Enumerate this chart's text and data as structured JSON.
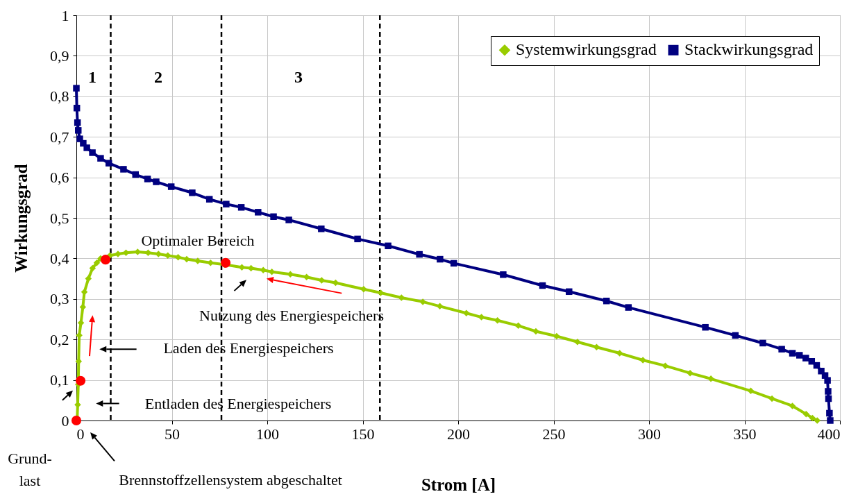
{
  "chart_data": {
    "type": "line",
    "xlabel": "Strom [A]",
    "ylabel": "Wirkungsgrad",
    "xlim": [
      0,
      400
    ],
    "xticks": [
      0,
      50,
      100,
      150,
      200,
      250,
      300,
      350,
      400
    ],
    "ylim": [
      0,
      1
    ],
    "yticks": [
      0,
      {
        "value": 0.1,
        "label": "0,1"
      },
      {
        "value": 0.2,
        "label": "0,2"
      },
      {
        "value": 0.3,
        "label": "0,3"
      },
      {
        "value": 0.4,
        "label": "0,4"
      },
      {
        "value": 0.5,
        "label": "0,5"
      },
      {
        "value": 0.6,
        "label": "0,6"
      },
      {
        "value": 0.7,
        "label": "0,7"
      },
      {
        "value": 0.8,
        "label": "0,8"
      },
      {
        "value": 0.9,
        "label": "0,9"
      },
      1
    ],
    "grid": true,
    "legend": "top right",
    "series": [
      {
        "name": "Systemwirkungsgrad",
        "color": "#99cc00",
        "marker": "diamond",
        "x": [
          0.4,
          0.7,
          1,
          1.2,
          1.5,
          2.4,
          3.4,
          4.2,
          6.3,
          8.5,
          10.7,
          12.7,
          17.6,
          21.8,
          26,
          32.1,
          37.6,
          43,
          47.9,
          53.3,
          57.8,
          63.6,
          70.3,
          77.6,
          86.7,
          91.5,
          97.9,
          102.4,
          112.1,
          120.6,
          128.5,
          135.8,
          150.5,
          159.4,
          170.3,
          181.5,
          190.4,
          204.3,
          212.2,
          220.6,
          231.5,
          240.7,
          251.6,
          262.5,
          272.5,
          284.6,
          296.8,
          308.5,
          321.5,
          332.4,
          353.3,
          364.4,
          375.1,
          382.3,
          385.6,
          388.1
        ],
        "values": [
          0,
          0.039,
          0.089,
          0.146,
          0.21,
          0.241,
          0.28,
          0.317,
          0.35,
          0.376,
          0.389,
          0.4,
          0.407,
          0.411,
          0.414,
          0.416,
          0.414,
          0.411,
          0.407,
          0.403,
          0.398,
          0.394,
          0.389,
          0.385,
          0.378,
          0.376,
          0.371,
          0.367,
          0.361,
          0.354,
          0.346,
          0.34,
          0.324,
          0.315,
          0.303,
          0.293,
          0.282,
          0.265,
          0.255,
          0.247,
          0.234,
          0.22,
          0.208,
          0.194,
          0.181,
          0.166,
          0.149,
          0.135,
          0.117,
          0.103,
          0.073,
          0.054,
          0.036,
          0.016,
          0.006,
          0
        ]
      },
      {
        "name": "Stackwirkungsgrad",
        "color": "#000080",
        "marker": "square",
        "x": [
          0,
          0.25,
          0.6,
          1,
          1.8,
          3.6,
          5.5,
          8.4,
          12.7,
          17,
          24.7,
          31,
          37.3,
          41.8,
          49.7,
          60.7,
          69.7,
          78.5,
          86.4,
          95.2,
          103.3,
          111.3,
          128.3,
          147.3,
          163.3,
          179.7,
          190.5,
          197.7,
          223.6,
          244.2,
          258.1,
          277.7,
          289.2,
          329.5,
          345.2,
          359.6,
          369.5,
          375.1,
          378.8,
          382.1,
          385.2,
          387.8,
          390.2,
          392.2,
          393.5,
          393.8,
          394,
          394.5,
          394.9
        ],
        "values": [
          0.82,
          0.771,
          0.735,
          0.716,
          0.695,
          0.684,
          0.673,
          0.661,
          0.647,
          0.635,
          0.62,
          0.607,
          0.596,
          0.589,
          0.577,
          0.562,
          0.546,
          0.534,
          0.526,
          0.514,
          0.503,
          0.495,
          0.473,
          0.448,
          0.431,
          0.41,
          0.398,
          0.388,
          0.36,
          0.333,
          0.318,
          0.295,
          0.279,
          0.23,
          0.21,
          0.191,
          0.176,
          0.166,
          0.161,
          0.154,
          0.146,
          0.136,
          0.122,
          0.111,
          0.099,
          0.072,
          0.054,
          0.018,
          0
        ]
      },
      {
        "type": "scatter",
        "color": "#ff0000",
        "marker": "circle",
        "x": [
          0,
          2.2,
          15.3,
          78.2
        ],
        "values": [
          0,
          0.098,
          0.397,
          0.389
        ]
      }
    ],
    "ref_lines": [
      {
        "axis": "x",
        "value": 18,
        "color": "#000000",
        "line_style": "dashed"
      },
      {
        "axis": "x",
        "value": 76,
        "color": "#000000",
        "line_style": "dashed"
      },
      {
        "axis": "x",
        "value": 159,
        "color": "#000000",
        "line_style": "dashed"
      }
    ],
    "annotations": [
      "1",
      "2",
      "3",
      "Optimaler Bereich",
      "Nutzung des Energiespeichers",
      "Laden des Energiespeichers",
      "Entladen des Energiespeichers",
      "Grund-\nlast",
      "Brennstoffzellensystem abgeschaltet"
    ]
  }
}
